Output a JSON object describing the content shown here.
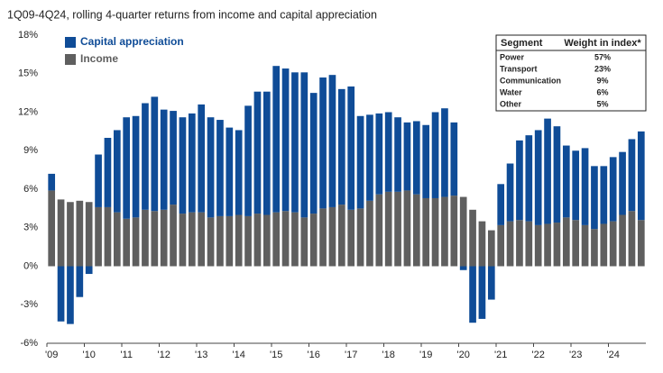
{
  "chart_data": {
    "type": "stacked_bar",
    "title": "1Q09-4Q24, rolling 4-quarter returns from income and capital appreciation",
    "categories": [
      "'09",
      null,
      null,
      null,
      "'10",
      null,
      null,
      null,
      "'11",
      null,
      null,
      null,
      "'12",
      null,
      null,
      null,
      "'13",
      null,
      null,
      null,
      "'14",
      null,
      null,
      null,
      "'15",
      null,
      null,
      null,
      "'16",
      null,
      null,
      null,
      "'17",
      null,
      null,
      null,
      "'18",
      null,
      null,
      null,
      "'19",
      null,
      null,
      null,
      "'20",
      null,
      null,
      null,
      "'21",
      null,
      null,
      null,
      "'22",
      null,
      null,
      null,
      "'23",
      null,
      null,
      null,
      "'24",
      null,
      null,
      null
    ],
    "series": [
      {
        "name": "Capital appreciation",
        "color": "#0f4c97",
        "values": [
          1.3,
          -4.3,
          -4.5,
          -2.4,
          -0.6,
          4.1,
          5.4,
          6.4,
          7.9,
          7.9,
          8.3,
          8.9,
          7.8,
          7.3,
          7.5,
          7.7,
          8.4,
          7.8,
          7.5,
          6.9,
          6.6,
          8.6,
          9.5,
          9.6,
          11.4,
          11.1,
          10.9,
          11.3,
          9.4,
          10.2,
          10.3,
          9.0,
          9.6,
          7.2,
          6.7,
          6.3,
          6.2,
          5.8,
          5.3,
          5.7,
          5.7,
          6.7,
          6.9,
          5.7,
          -0.3,
          -4.4,
          -4.1,
          -2.6,
          3.2,
          4.5,
          6.2,
          6.7,
          7.4,
          8.2,
          7.5,
          5.6,
          5.4,
          6.0,
          4.9,
          4.5,
          5.0,
          4.9,
          5.6,
          6.9
        ]
      },
      {
        "name": "Income",
        "color": "#5f5f5f",
        "values": [
          5.9,
          5.2,
          5.0,
          5.1,
          5.0,
          4.6,
          4.6,
          4.2,
          3.7,
          3.8,
          4.4,
          4.3,
          4.4,
          4.8,
          4.1,
          4.2,
          4.2,
          3.8,
          3.9,
          3.9,
          4.0,
          3.9,
          4.1,
          4.0,
          4.2,
          4.3,
          4.2,
          3.8,
          4.1,
          4.5,
          4.6,
          4.8,
          4.4,
          4.5,
          5.1,
          5.6,
          5.8,
          5.8,
          5.9,
          5.6,
          5.3,
          5.3,
          5.4,
          5.5,
          5.4,
          4.4,
          3.5,
          2.8,
          3.2,
          3.5,
          3.6,
          3.5,
          3.2,
          3.3,
          3.4,
          3.8,
          3.6,
          3.2,
          2.9,
          3.3,
          3.5,
          4.0,
          4.3,
          3.6
        ]
      }
    ],
    "ylim": [
      -6,
      18
    ],
    "yticks": [
      {
        "value": -6,
        "label": "-6%"
      },
      {
        "value": -3,
        "label": "-3%"
      },
      {
        "value": 0,
        "label": "0%"
      },
      {
        "value": 3,
        "label": "3%"
      },
      {
        "value": 6,
        "label": "6%"
      },
      {
        "value": 9,
        "label": "9%"
      },
      {
        "value": 12,
        "label": "12%"
      },
      {
        "value": 15,
        "label": "15%"
      },
      {
        "value": 18,
        "label": "18%"
      }
    ],
    "grid": false,
    "legend": "top-left",
    "table": {
      "columns": [
        "Segment",
        "Weight in index*"
      ],
      "rows": [
        [
          "Power",
          "57%"
        ],
        [
          "Transport",
          "23%"
        ],
        [
          "Communication",
          "9%"
        ],
        [
          "Water",
          "6%"
        ],
        [
          "Other",
          "5%"
        ]
      ]
    }
  }
}
